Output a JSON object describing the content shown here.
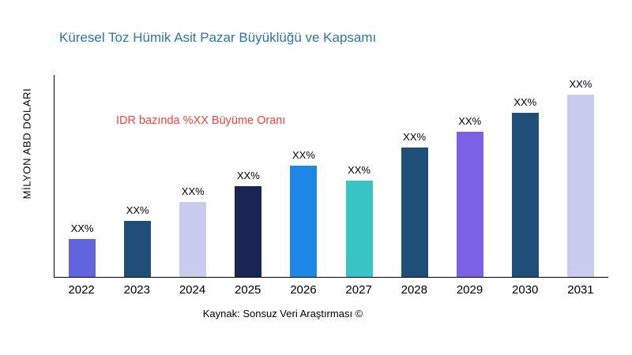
{
  "title": "Küresel Toz Hümik Asit Pazar Büyüklüğü ve Kapsamı",
  "y_axis_label": "MİLYON ABD DOLARI",
  "annotation": "IDR bazında %XX Büyüme Oranı",
  "source": "Kaynak: Sonsuz Veri Araştırması ©",
  "colors": {
    "title": "#2E75A8",
    "annotation": "#F8413B",
    "axis": "#000000"
  },
  "chart_data": {
    "type": "bar",
    "title": "Küresel Toz Hümik Asit Pazar Büyüklüğü ve Kapsamı",
    "xlabel": "",
    "ylabel": "MİLYON ABD DOLARI",
    "categories": [
      "2022",
      "2023",
      "2024",
      "2025",
      "2026",
      "2027",
      "2028",
      "2029",
      "2030",
      "2031"
    ],
    "values": [
      21,
      31,
      41,
      50,
      61,
      53,
      71,
      80,
      90,
      100
    ],
    "bar_labels": [
      "XX%",
      "XX%",
      "XX%",
      "XX%",
      "XX%",
      "XX%",
      "XX%",
      "XX%",
      "XX%",
      "XX%"
    ],
    "bar_colors": [
      "#6163DF",
      "#1F4E79",
      "#C9CCEF",
      "#1B2553",
      "#1E87E5",
      "#38C4C4",
      "#1F4E79",
      "#7B61E6",
      "#1F4E79",
      "#C9CCEF"
    ],
    "ylim": [
      0,
      111
    ],
    "grid": false,
    "legend": "none",
    "annotation": "IDR bazında %XX Büyüme Oranı"
  }
}
